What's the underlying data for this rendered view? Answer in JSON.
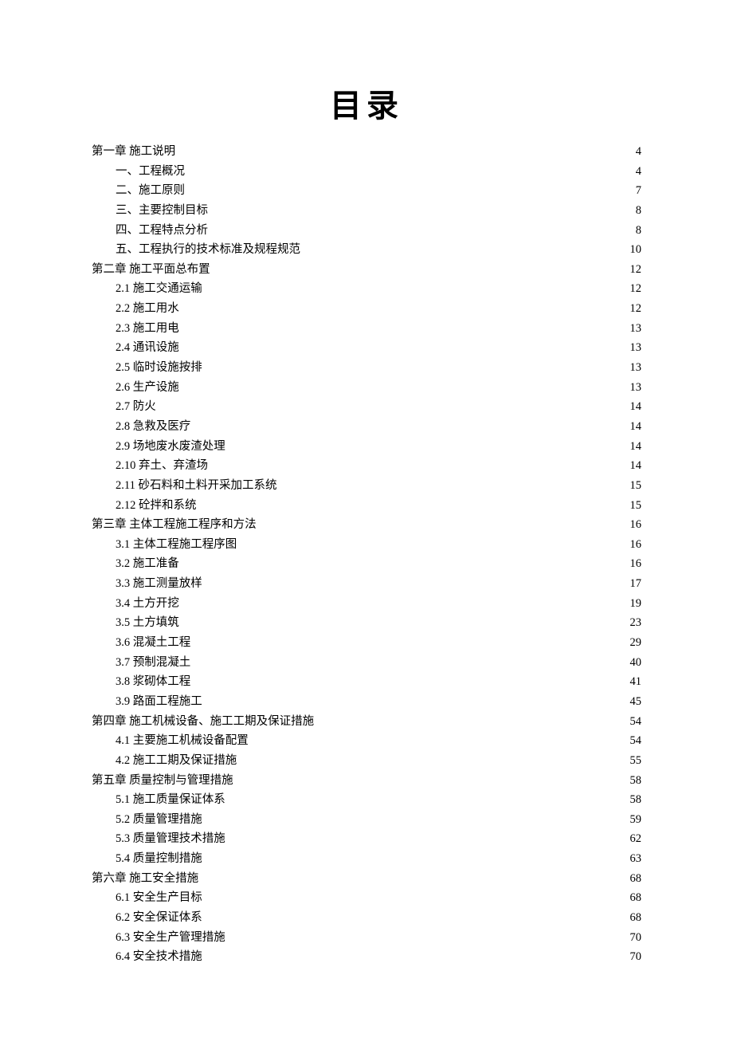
{
  "title": "目录",
  "colors": {
    "text": "#000000",
    "background": "#ffffff"
  },
  "typography": {
    "title_fontsize": 40,
    "body_fontsize": 14.5,
    "font_family": "SimSun"
  },
  "toc": [
    {
      "level": 0,
      "label": "第一章   施工说明",
      "page": "4"
    },
    {
      "level": 1,
      "label": "一、工程概况",
      "page": "4"
    },
    {
      "level": 1,
      "label": "二、施工原则",
      "page": "7"
    },
    {
      "level": 1,
      "label": "三、主要控制目标",
      "page": "8"
    },
    {
      "level": 1,
      "label": "四、工程特点分析",
      "page": "8"
    },
    {
      "level": 1,
      "label": "五、工程执行的技术标准及规程规范",
      "page": "10"
    },
    {
      "level": 0,
      "label": "第二章   施工平面总布置",
      "page": "12"
    },
    {
      "level": 1,
      "label": "2.1 施工交通运输",
      "page": "12"
    },
    {
      "level": 1,
      "label": "2.2 施工用水",
      "page": "12"
    },
    {
      "level": 1,
      "label": "2.3 施工用电",
      "page": "13"
    },
    {
      "level": 1,
      "label": "2.4 通讯设施",
      "page": "13"
    },
    {
      "level": 1,
      "label": "2.5 临时设施按排",
      "page": "13"
    },
    {
      "level": 1,
      "label": "2.6 生产设施",
      "page": "13"
    },
    {
      "level": 1,
      "label": "2.7 防火",
      "page": "14"
    },
    {
      "level": 1,
      "label": "2.8 急救及医疗",
      "page": "14"
    },
    {
      "level": 1,
      "label": "2.9 场地废水废渣处理",
      "page": "14"
    },
    {
      "level": 1,
      "label": "2.10 弃土、弃渣场",
      "page": "14"
    },
    {
      "level": 1,
      "label": "2.11 砂石料和土料开采加工系统",
      "page": "15"
    },
    {
      "level": 1,
      "label": "2.12 砼拌和系统",
      "page": "15"
    },
    {
      "level": 0,
      "label": "第三章   主体工程施工程序和方法",
      "page": "16"
    },
    {
      "level": 1,
      "label": "3.1 主体工程施工程序图",
      "page": "16"
    },
    {
      "level": 1,
      "label": "3.2 施工准备",
      "page": "16"
    },
    {
      "level": 1,
      "label": "3.3 施工测量放样",
      "page": "17"
    },
    {
      "level": 1,
      "label": "3.4 土方开挖",
      "page": "19"
    },
    {
      "level": 1,
      "label": "3.5 土方填筑",
      "page": "23"
    },
    {
      "level": 1,
      "label": "3.6 混凝土工程",
      "page": "29"
    },
    {
      "level": 1,
      "label": "3.7 预制混凝土",
      "page": "40"
    },
    {
      "level": 1,
      "label": "3.8 浆砌体工程",
      "page": "41"
    },
    {
      "level": 1,
      "label": "3.9 路面工程施工",
      "page": "45"
    },
    {
      "level": 0,
      "label": "第四章 施工机械设备、施工工期及保证措施",
      "page": "54"
    },
    {
      "level": 1,
      "label": "4.1 主要施工机械设备配置",
      "page": "54"
    },
    {
      "level": 1,
      "label": "4.2 施工工期及保证措施",
      "page": "55"
    },
    {
      "level": 0,
      "label": "第五章   质量控制与管理措施",
      "page": "58"
    },
    {
      "level": 1,
      "label": "5.1 施工质量保证体系",
      "page": "58"
    },
    {
      "level": 1,
      "label": "5.2 质量管理措施",
      "page": "59"
    },
    {
      "level": 1,
      "label": "5.3 质量管理技术措施",
      "page": "62"
    },
    {
      "level": 1,
      "label": "5.4 质量控制措施",
      "page": "63"
    },
    {
      "level": 0,
      "label": "第六章  施工安全措施",
      "page": "68"
    },
    {
      "level": 1,
      "label": "6.1 安全生产目标",
      "page": "68"
    },
    {
      "level": 1,
      "label": "6.2 安全保证体系",
      "page": "68"
    },
    {
      "level": 1,
      "label": "6.3 安全生产管理措施",
      "page": "70"
    },
    {
      "level": 1,
      "label": "6.4 安全技术措施",
      "page": "70"
    }
  ]
}
